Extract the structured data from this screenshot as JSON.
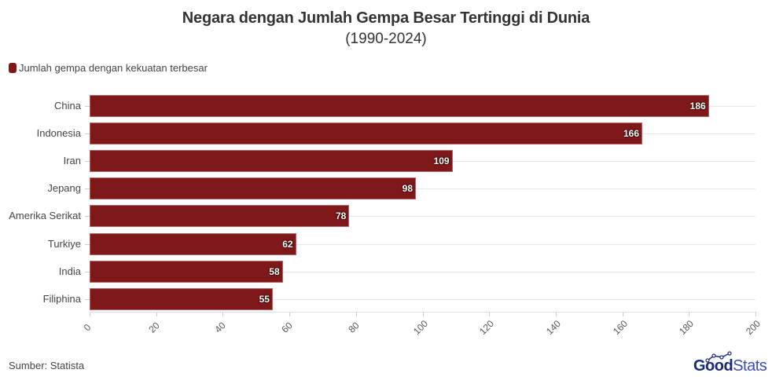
{
  "header": {
    "title": "Negara dengan Jumlah Gempa Besar Tertinggi di Dunia",
    "subtitle": "(1990-2024)"
  },
  "legend": {
    "label": "Jumlah gempa dengan kekuatan terbesar",
    "color": "#7f1818"
  },
  "footer": {
    "source": "Sumber: Statista",
    "logo_good": "Good",
    "logo_stats": "Stats"
  },
  "x_axis": {
    "ticks": [
      "0",
      "20",
      "40",
      "60",
      "80",
      "100",
      "120",
      "140",
      "160",
      "180",
      "200"
    ]
  },
  "chart_data": {
    "type": "bar",
    "orientation": "horizontal",
    "title": "Negara dengan Jumlah Gempa Besar Tertinggi di Dunia",
    "subtitle": "(1990-2024)",
    "categories": [
      "China",
      "Indonesia",
      "Iran",
      "Jepang",
      "Amerika Serikat",
      "Turkiye",
      "India",
      "Filiphina"
    ],
    "series": [
      {
        "name": "Jumlah gempa dengan kekuatan terbesar",
        "color": "#7f1818",
        "values": [
          186,
          166,
          109,
          98,
          78,
          62,
          58,
          55
        ]
      }
    ],
    "values": [
      186,
      166,
      109,
      98,
      78,
      62,
      58,
      55
    ],
    "xlabel": "",
    "ylabel": "",
    "xlim": [
      0,
      200
    ],
    "xticks": [
      0,
      20,
      40,
      60,
      80,
      100,
      120,
      140,
      160,
      180,
      200
    ],
    "grid": true,
    "legend_position": "top-left",
    "data_labels": true,
    "source": "Sumber: Statista"
  },
  "bars": [
    {
      "label": "China",
      "value": "186"
    },
    {
      "label": "Indonesia",
      "value": "166"
    },
    {
      "label": "Iran",
      "value": "109"
    },
    {
      "label": "Jepang",
      "value": "98"
    },
    {
      "label": "Amerika Serikat",
      "value": "78"
    },
    {
      "label": "Turkiye",
      "value": "62"
    },
    {
      "label": "India",
      "value": "58"
    },
    {
      "label": "Filiphina",
      "value": "55"
    }
  ]
}
